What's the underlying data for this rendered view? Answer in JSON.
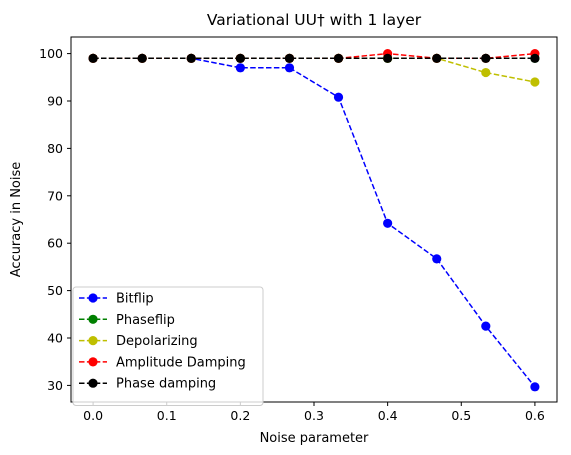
{
  "chart_data": {
    "type": "line",
    "title": "Variational UU† with 1 layer",
    "xlabel": "Noise parameter",
    "ylabel": "Accuracy in Noise",
    "xlim": [
      -0.03,
      0.63
    ],
    "ylim": [
      26.5,
      103.5
    ],
    "xticks": [
      0.0,
      0.1,
      0.2,
      0.3,
      0.4,
      0.5,
      0.6
    ],
    "xtick_labels": [
      "0.0",
      "0.1",
      "0.2",
      "0.3",
      "0.4",
      "0.5",
      "0.6"
    ],
    "yticks": [
      30,
      40,
      50,
      60,
      70,
      80,
      90,
      100
    ],
    "ytick_labels": [
      "30",
      "40",
      "50",
      "60",
      "70",
      "80",
      "90",
      "100"
    ],
    "grid": false,
    "legend_position": "lower-left",
    "x": [
      0.0,
      0.0667,
      0.1333,
      0.2,
      0.2667,
      0.3333,
      0.4,
      0.4667,
      0.5333,
      0.6
    ],
    "series": [
      {
        "name": "Bitflip",
        "color": "#0000ff",
        "values": [
          99,
          99,
          99,
          97,
          97,
          90.8,
          64.2,
          56.7,
          42.5,
          29.7
        ]
      },
      {
        "name": "Phaseflip",
        "color": "#008000",
        "values": [
          99,
          99,
          99,
          99,
          99,
          99,
          99,
          99,
          99,
          99
        ]
      },
      {
        "name": "Depolarizing",
        "color": "#bfbf00",
        "values": [
          99,
          99,
          99,
          99,
          99,
          99,
          99,
          99,
          96,
          94
        ]
      },
      {
        "name": "Amplitude Damping",
        "color": "#ff0000",
        "values": [
          99,
          99,
          99,
          99,
          99,
          99,
          100,
          99,
          99,
          100
        ]
      },
      {
        "name": "Phase damping",
        "color": "#000000",
        "values": [
          99,
          99,
          99,
          99,
          99,
          99,
          99,
          99,
          99,
          99
        ]
      }
    ]
  }
}
